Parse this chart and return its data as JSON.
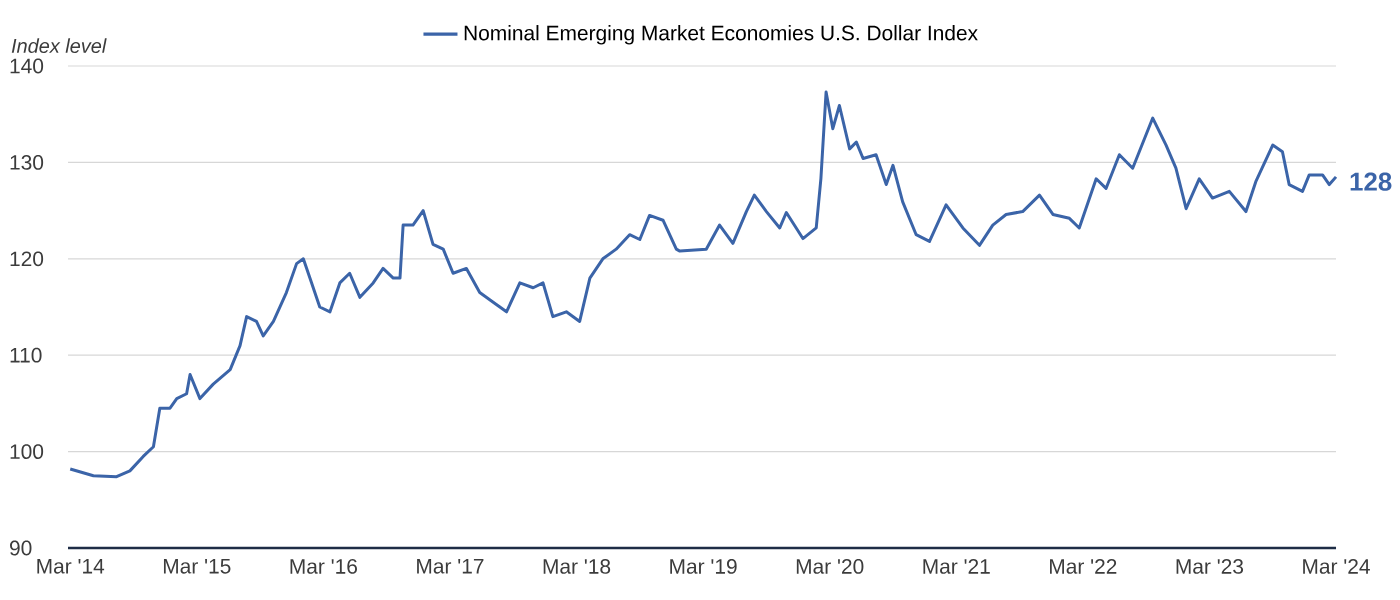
{
  "chart_data": {
    "type": "line",
    "ylabel": "Index level",
    "series": [
      {
        "name": "Nominal Emerging Market Economies U.S. Dollar Index",
        "color": "#3b64a8",
        "x": [
          "2014-03-01",
          "2014-05-07",
          "2014-07-13",
          "2014-08-21",
          "2014-09-29",
          "2014-10-28",
          "2014-11-16",
          "2014-12-15",
          "2015-01-04",
          "2015-02-02",
          "2015-02-12",
          "2015-03-10",
          "2015-04-18",
          "2015-06-06",
          "2015-07-04",
          "2015-07-23",
          "2015-08-21",
          "2015-09-10",
          "2015-10-09",
          "2015-11-16",
          "2015-12-15",
          "2016-01-04",
          "2016-01-23",
          "2016-02-21",
          "2016-03-20",
          "2016-04-18",
          "2016-05-16",
          "2016-06-15",
          "2016-07-23",
          "2016-08-21",
          "2016-09-20",
          "2016-10-09",
          "2016-10-18",
          "2016-11-16",
          "2016-12-15",
          "2017-01-13",
          "2017-02-12",
          "2017-03-10",
          "2017-04-18",
          "2017-05-26",
          "2017-07-04",
          "2017-08-12",
          "2017-09-20",
          "2017-10-28",
          "2017-11-26",
          "2017-12-24",
          "2018-02-02",
          "2018-03-10",
          "2018-04-09",
          "2018-05-16",
          "2018-06-24",
          "2018-08-02",
          "2018-09-01",
          "2018-09-29",
          "2018-11-07",
          "2018-12-15",
          "2018-12-25",
          "2019-03-10",
          "2019-04-18",
          "2019-05-26",
          "2019-07-04",
          "2019-07-27",
          "2019-09-01",
          "2019-10-09",
          "2019-10-28",
          "2019-12-15",
          "2020-01-23",
          "2020-02-06",
          "2020-02-21",
          "2020-03-10",
          "2020-03-29",
          "2020-04-28",
          "2020-05-17",
          "2020-06-06",
          "2020-07-13",
          "2020-08-12",
          "2020-09-01",
          "2020-09-29",
          "2020-11-07",
          "2020-12-15",
          "2021-02-02",
          "2021-03-20",
          "2021-05-07",
          "2021-06-15",
          "2021-07-23",
          "2021-09-10",
          "2021-10-28",
          "2021-12-06",
          "2022-01-23",
          "2022-02-21",
          "2022-04-09",
          "2022-05-07",
          "2022-06-15",
          "2022-07-23",
          "2022-09-20",
          "2022-10-28",
          "2022-11-26",
          "2022-12-25",
          "2023-02-02",
          "2023-03-10",
          "2023-04-28",
          "2023-06-15",
          "2023-07-13",
          "2023-09-01",
          "2023-09-29",
          "2023-10-18",
          "2023-11-26",
          "2023-12-15",
          "2024-01-23",
          "2024-02-12",
          "2024-03-01"
        ],
        "values": [
          98.2,
          97.5,
          97.4,
          98,
          99.5,
          100.5,
          104.5,
          104.5,
          105.5,
          106,
          108,
          105.5,
          107,
          108.5,
          111,
          114,
          113.5,
          112,
          113.5,
          116.5,
          119.5,
          120,
          118,
          115,
          114.5,
          117.5,
          118.5,
          116,
          117.5,
          119,
          118,
          118,
          123.5,
          123.5,
          125,
          121.5,
          121,
          118.5,
          119,
          116.5,
          115.5,
          114.5,
          117.5,
          117,
          117.5,
          114,
          114.5,
          113.5,
          118,
          120,
          121,
          122.5,
          122,
          124.5,
          124,
          121,
          120.8,
          121,
          123.5,
          121.6,
          124.9,
          126.6,
          124.9,
          123.2,
          124.8,
          122.1,
          123.2,
          128.3,
          137.3,
          133.5,
          135.9,
          131.4,
          132.1,
          130.4,
          130.8,
          127.7,
          129.7,
          125.9,
          122.5,
          121.8,
          125.6,
          123.2,
          121.4,
          123.5,
          124.6,
          124.9,
          126.6,
          124.6,
          124.2,
          123.2,
          128.3,
          127.3,
          130.8,
          129.4,
          134.6,
          131.8,
          129.4,
          125.2,
          128.3,
          126.3,
          127,
          124.9,
          128,
          131.8,
          131.1,
          127.7,
          127,
          128.7,
          128.7,
          127.7,
          128.5
        ]
      }
    ],
    "xlim": [
      "2014-02-25",
      "2024-03-01"
    ],
    "ylim": [
      90,
      140
    ],
    "xticks": [
      {
        "value": "2014-03",
        "label": "Mar '14"
      },
      {
        "value": "2015-03",
        "label": "Mar '15"
      },
      {
        "value": "2016-03",
        "label": "Mar '16"
      },
      {
        "value": "2017-03",
        "label": "Mar '17"
      },
      {
        "value": "2018-03",
        "label": "Mar '18"
      },
      {
        "value": "2019-03",
        "label": "Mar '19"
      },
      {
        "value": "2020-03",
        "label": "Mar '20"
      },
      {
        "value": "2021-03",
        "label": "Mar '21"
      },
      {
        "value": "2022-03",
        "label": "Mar '22"
      },
      {
        "value": "2023-03",
        "label": "Mar '23"
      },
      {
        "value": "2024-03",
        "label": "Mar '24"
      }
    ],
    "yticks": [
      90,
      100,
      110,
      120,
      130,
      140
    ],
    "grid": "y",
    "legend": "top",
    "line_style": "solid",
    "annotations": [
      {
        "text": "128",
        "x": "2024-03-01",
        "y": 128
      }
    ]
  }
}
